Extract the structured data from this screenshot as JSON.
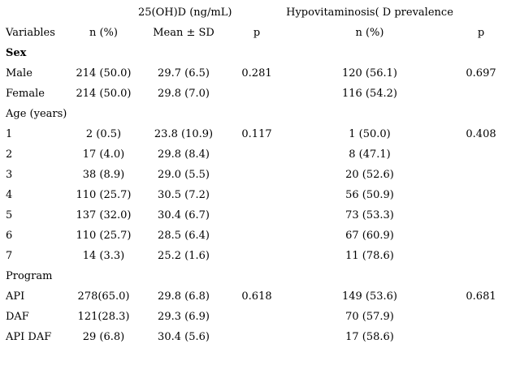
{
  "table": {
    "span_headers": {
      "vitd": "25(OH)D (ng/mL)",
      "hypo": "Hypovitaminosis( D prevalence"
    },
    "column_headers": [
      "Variables",
      "n (%)",
      "Mean ± SD",
      "p",
      "n (%)",
      "p"
    ],
    "rows": [
      {
        "bold": true,
        "cells": [
          "Sex",
          "",
          "",
          "",
          "",
          ""
        ]
      },
      {
        "bold": false,
        "cells": [
          "Male",
          "214 (50.0)",
          "29.7 (6.5)",
          "0.281",
          "120 (56.1)",
          "0.697"
        ]
      },
      {
        "bold": false,
        "cells": [
          "Female",
          "214 (50.0)",
          "29.8 (7.0)",
          "",
          "116 (54.2)",
          ""
        ]
      },
      {
        "bold": false,
        "cells": [
          "Age (years)",
          "",
          "",
          "",
          "",
          ""
        ]
      },
      {
        "bold": false,
        "cells": [
          "1",
          "2 (0.5)",
          "23.8 (10.9)",
          "0.117",
          "1 (50.0)",
          "0.408"
        ]
      },
      {
        "bold": false,
        "cells": [
          "2",
          "17 (4.0)",
          "29.8 (8.4)",
          "",
          "8 (47.1)",
          ""
        ]
      },
      {
        "bold": false,
        "cells": [
          "3",
          "38 (8.9)",
          "29.0 (5.5)",
          "",
          "20 (52.6)",
          ""
        ]
      },
      {
        "bold": false,
        "cells": [
          "4",
          "110 (25.7)",
          "30.5 (7.2)",
          "",
          "56 (50.9)",
          ""
        ]
      },
      {
        "bold": false,
        "cells": [
          "5",
          "137 (32.0)",
          "30.4 (6.7)",
          "",
          "73 (53.3)",
          ""
        ]
      },
      {
        "bold": false,
        "cells": [
          "6",
          "110 (25.7)",
          "28.5 (6.4)",
          "",
          "67 (60.9)",
          ""
        ]
      },
      {
        "bold": false,
        "cells": [
          "7",
          "14 (3.3)",
          "25.2 (1.6)",
          "",
          "11 (78.6)",
          ""
        ]
      },
      {
        "bold": false,
        "cells": [
          "Program",
          "",
          "",
          "",
          "",
          ""
        ]
      },
      {
        "bold": false,
        "cells": [
          "API",
          "278(65.0)",
          "29.8 (6.8)",
          "0.618",
          "149 (53.6)",
          "0.681"
        ]
      },
      {
        "bold": false,
        "cells": [
          "DAF",
          "121(28.3)",
          "29.3 (6.9)",
          "",
          "70 (57.9)",
          ""
        ]
      },
      {
        "bold": false,
        "cells": [
          "API DAF",
          "29 (6.8)",
          "30.4 (5.6)",
          "",
          "17 (58.6)",
          ""
        ]
      }
    ]
  }
}
